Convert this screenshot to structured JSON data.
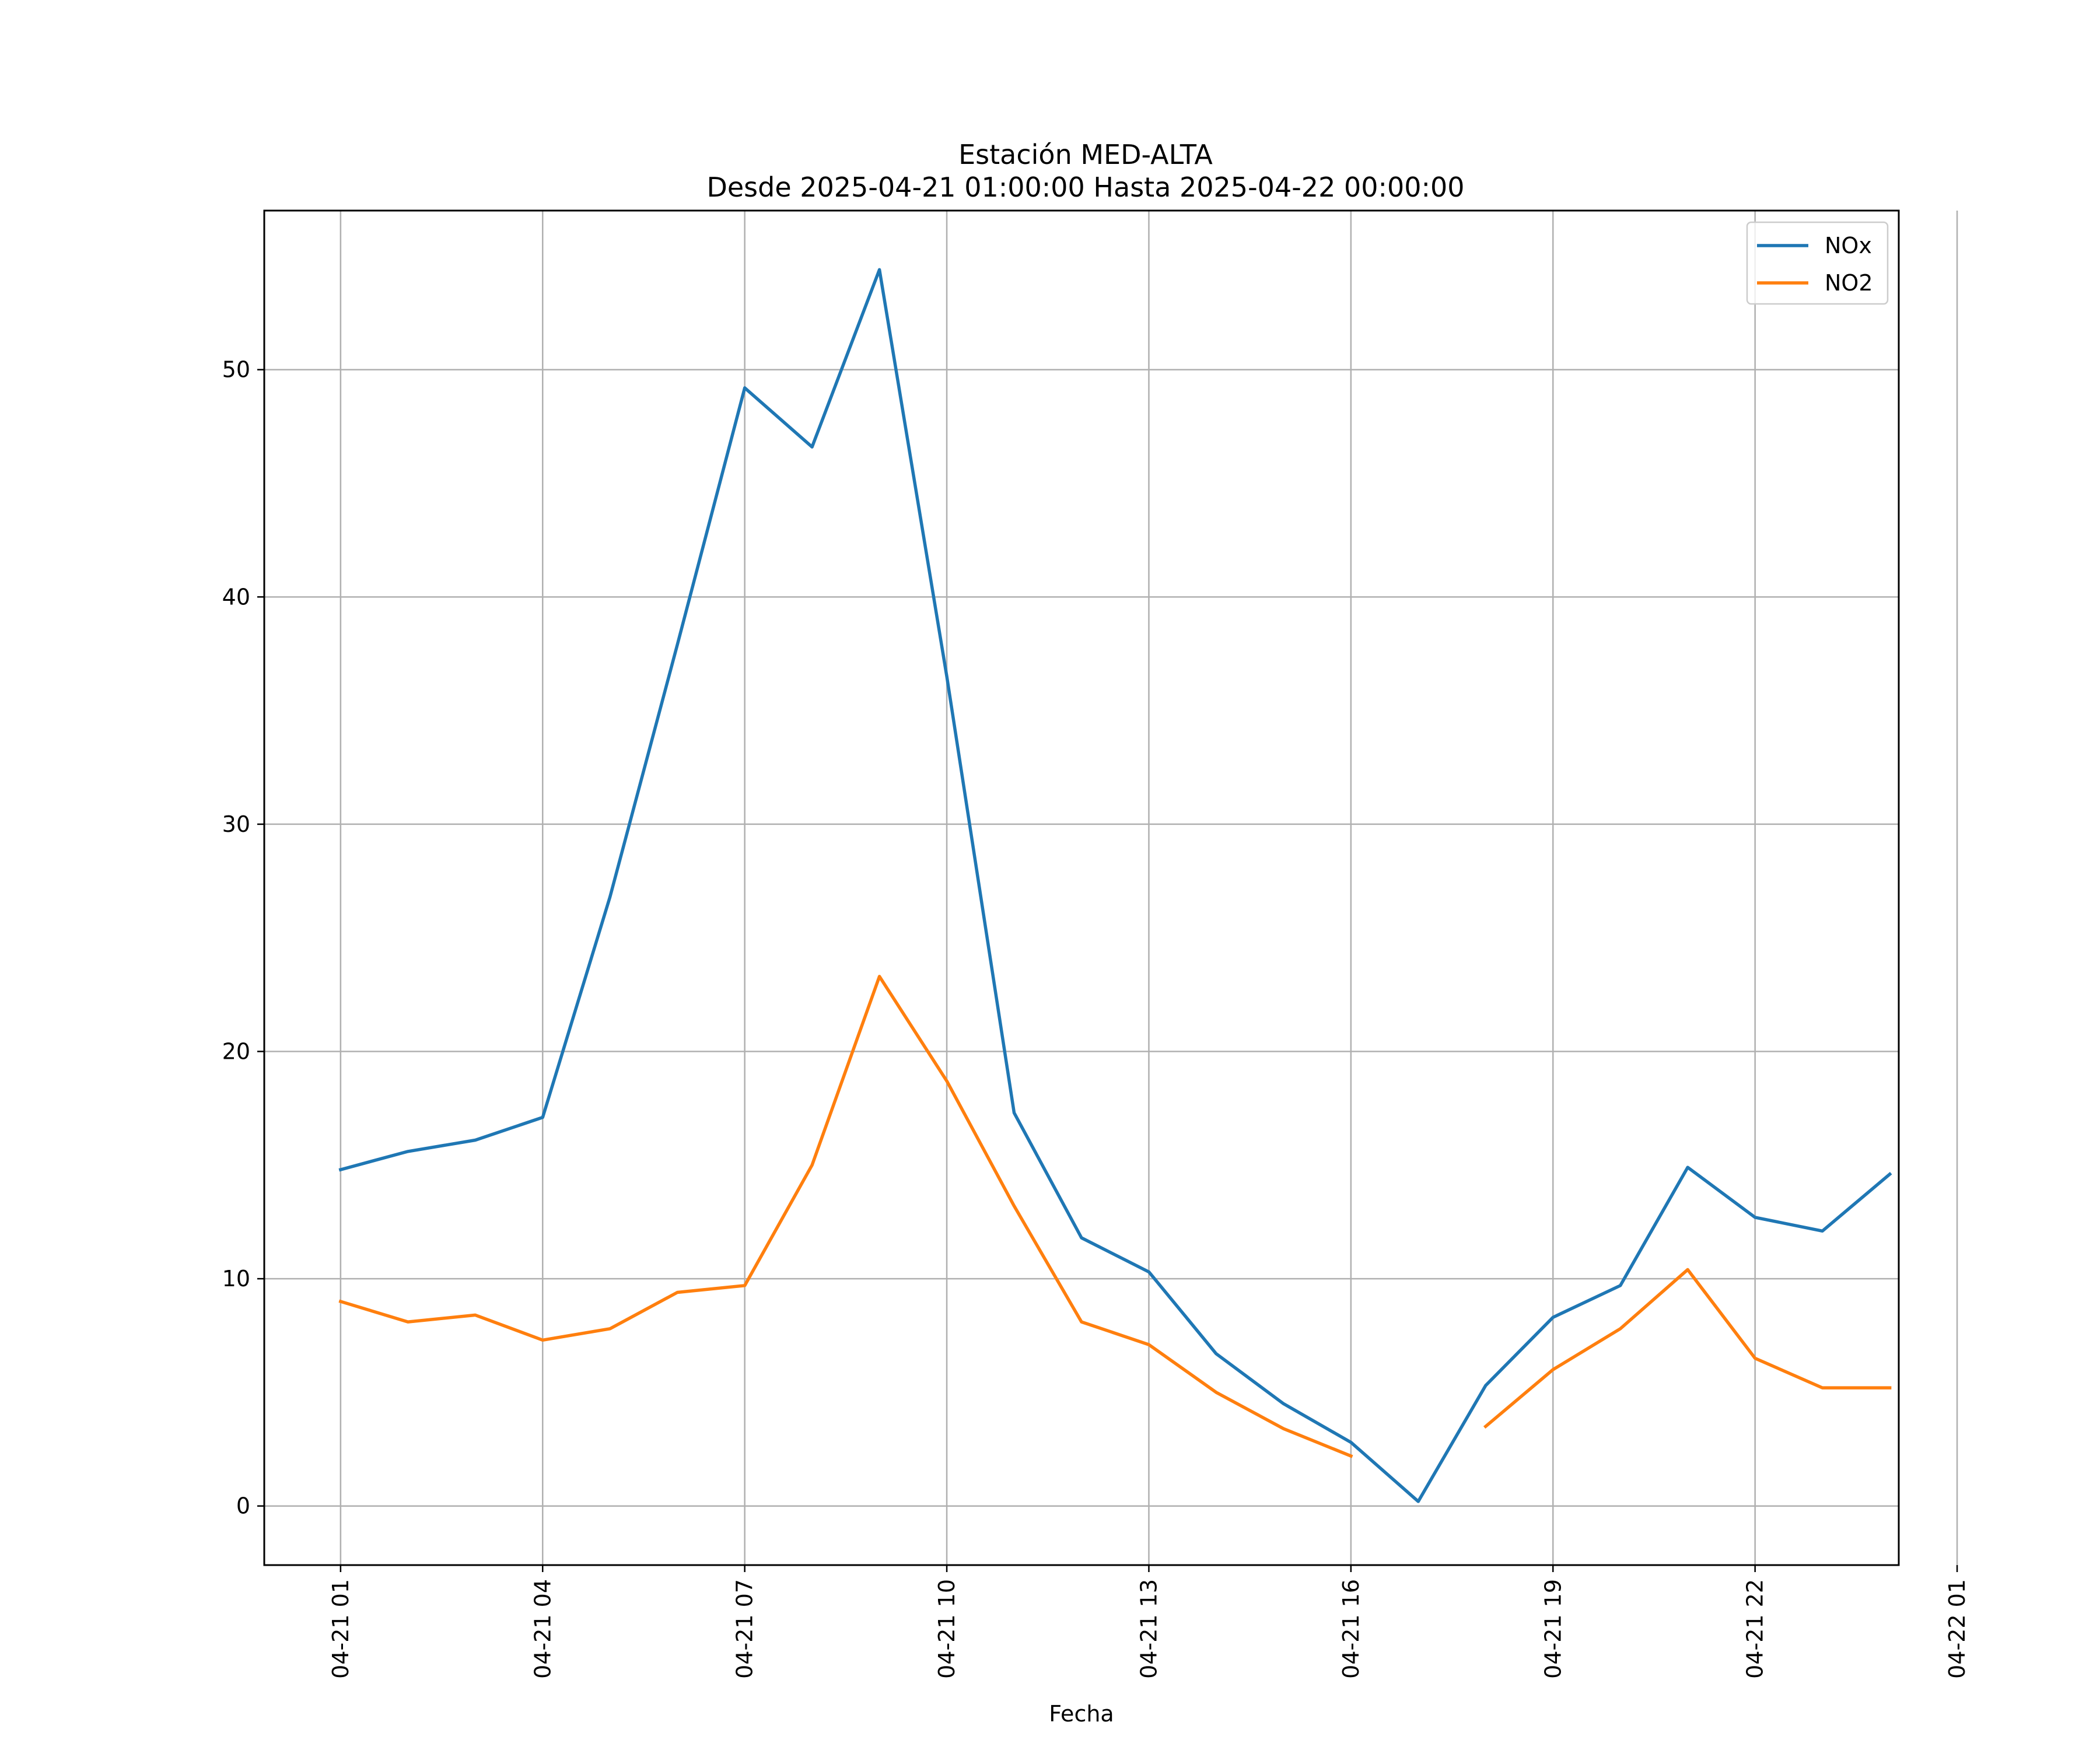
{
  "chart_data": {
    "type": "line",
    "title": "Estación MED-ALTA",
    "subtitle": "Desde 2025-04-21 01:00:00 Hasta 2025-04-22 00:00:00",
    "xlabel": "Fecha",
    "ylabel": "",
    "x": [
      "2025-04-21 01:00",
      "2025-04-21 02:00",
      "2025-04-21 03:00",
      "2025-04-21 04:00",
      "2025-04-21 05:00",
      "2025-04-21 06:00",
      "2025-04-21 07:00",
      "2025-04-21 08:00",
      "2025-04-21 09:00",
      "2025-04-21 10:00",
      "2025-04-21 11:00",
      "2025-04-21 12:00",
      "2025-04-21 13:00",
      "2025-04-21 14:00",
      "2025-04-21 15:00",
      "2025-04-21 16:00",
      "2025-04-21 17:00",
      "2025-04-21 18:00",
      "2025-04-21 19:00",
      "2025-04-21 20:00",
      "2025-04-21 21:00",
      "2025-04-21 22:00",
      "2025-04-21 23:00",
      "2025-04-22 00:00"
    ],
    "series": [
      {
        "name": "NOx",
        "color": "#1f77b4",
        "values": [
          14.8,
          15.6,
          16.1,
          17.1,
          26.8,
          37.9,
          49.2,
          46.6,
          54.4,
          36.5,
          17.3,
          11.8,
          10.3,
          6.7,
          4.5,
          2.8,
          0.2,
          5.3,
          8.3,
          9.7,
          14.9,
          12.7,
          12.1,
          14.6
        ]
      },
      {
        "name": "NO2",
        "color": "#ff7f0e",
        "values": [
          9.0,
          8.1,
          8.4,
          7.3,
          7.8,
          9.4,
          9.7,
          15.0,
          23.3,
          18.7,
          13.2,
          8.1,
          7.1,
          5.0,
          3.4,
          2.2,
          null,
          3.5,
          6.0,
          7.8,
          10.4,
          6.5,
          5.2,
          5.2
        ]
      }
    ],
    "xticks": [
      "04-21 01",
      "04-21 04",
      "04-21 07",
      "04-21 10",
      "04-21 13",
      "04-21 16",
      "04-21 19",
      "04-21 22",
      "04-22 01"
    ],
    "yticks": [
      "0",
      "10",
      "20",
      "30",
      "40",
      "50"
    ],
    "ylim": [
      -2.6,
      57.0
    ],
    "xlim": [
      "2025-04-20 23:52",
      "2025-04-22 00:08"
    ],
    "grid": true,
    "legend_position": "top-right"
  }
}
